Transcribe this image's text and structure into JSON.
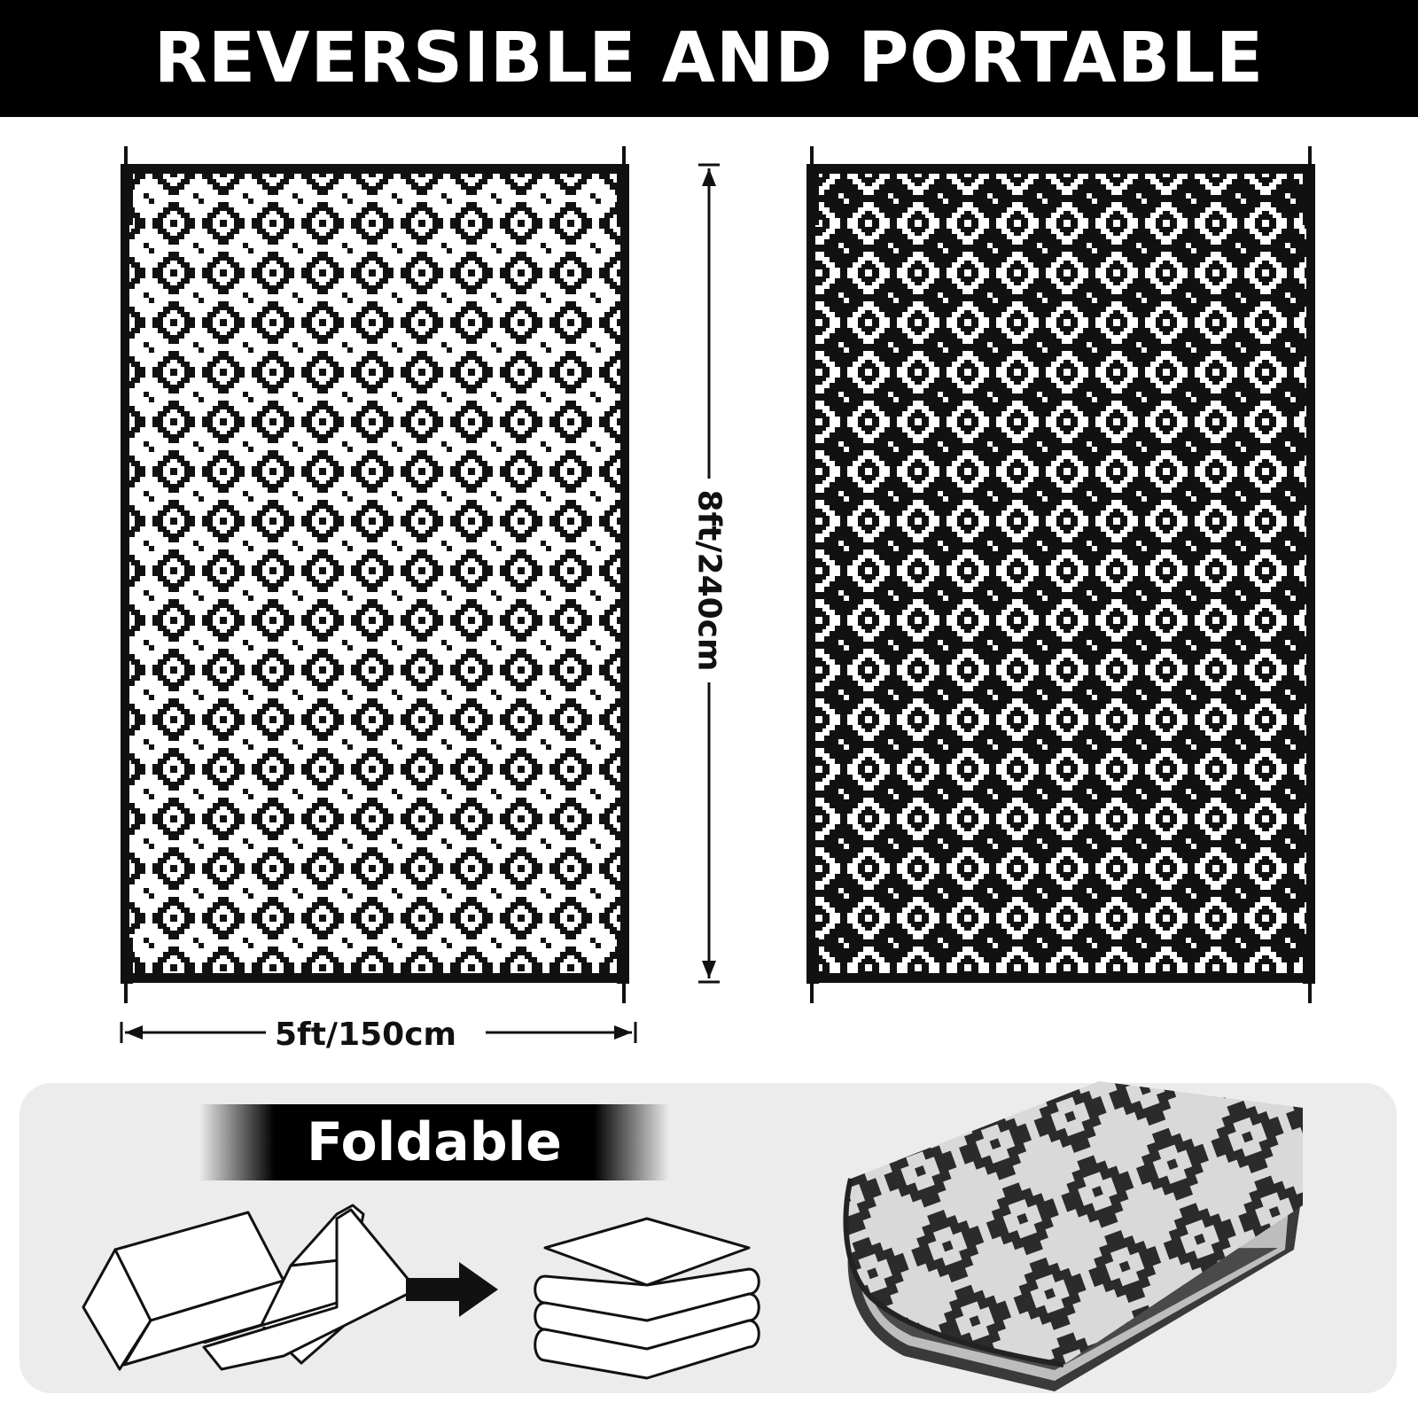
{
  "header": {
    "title": "REVERSIBLE AND PORTABLE"
  },
  "dimensions": {
    "width_label": "5ft/150cm",
    "height_label": "8ft/240cm"
  },
  "feature": {
    "label": "Foldable"
  },
  "colors": {
    "primary": "#000000",
    "background": "#ffffff",
    "panel": "#ececec"
  },
  "icons": [
    "folded-zigzag-icon",
    "right-arrow-icon",
    "stacked-layers-icon"
  ]
}
